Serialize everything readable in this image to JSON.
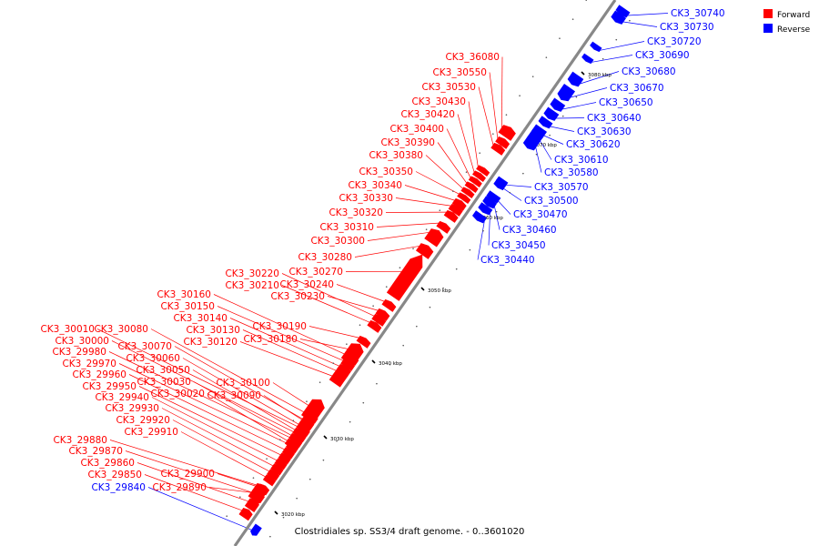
{
  "title": "Clostridiales sp. SS3/4 draft genome. - 0..3601020",
  "legend": [
    {
      "label": "Forward",
      "color": "#ff0000"
    },
    {
      "label": "Reverse",
      "color": "#0000ff"
    }
  ],
  "colors": {
    "forward": "#ff0000",
    "reverse": "#0000ff",
    "backbone": "#888888"
  },
  "ticks": [
    "3020 kbp",
    "3030 kbp",
    "3040 kbp",
    "3050 kbp",
    "3060 kbp",
    "3070 kbp",
    "3080 kbp"
  ],
  "genes": [
    {
      "name": "CK3_29840",
      "strand": "reverse"
    },
    {
      "name": "CK3_29850",
      "strand": "forward"
    },
    {
      "name": "CK3_29860",
      "strand": "forward"
    },
    {
      "name": "CK3_29870",
      "strand": "forward"
    },
    {
      "name": "CK3_29880",
      "strand": "forward"
    },
    {
      "name": "CK3_29890",
      "strand": "forward"
    },
    {
      "name": "CK3_29900",
      "strand": "forward"
    },
    {
      "name": "CK3_29910",
      "strand": "forward"
    },
    {
      "name": "CK3_29920",
      "strand": "forward"
    },
    {
      "name": "CK3_29930",
      "strand": "forward"
    },
    {
      "name": "CK3_29940",
      "strand": "forward"
    },
    {
      "name": "CK3_29950",
      "strand": "forward"
    },
    {
      "name": "CK3_29960",
      "strand": "forward"
    },
    {
      "name": "CK3_29970",
      "strand": "forward"
    },
    {
      "name": "CK3_29980",
      "strand": "forward"
    },
    {
      "name": "CK3_30000",
      "strand": "forward"
    },
    {
      "name": "CK3_30010",
      "strand": "forward"
    },
    {
      "name": "CK3_30020",
      "strand": "forward"
    },
    {
      "name": "CK3_30030",
      "strand": "forward"
    },
    {
      "name": "CK3_30050",
      "strand": "forward"
    },
    {
      "name": "CK3_30060",
      "strand": "forward"
    },
    {
      "name": "CK3_30070",
      "strand": "forward"
    },
    {
      "name": "CK3_30080",
      "strand": "forward"
    },
    {
      "name": "CK3_30090",
      "strand": "forward"
    },
    {
      "name": "CK3_30100",
      "strand": "forward"
    },
    {
      "name": "CK3_30120",
      "strand": "forward"
    },
    {
      "name": "CK3_30130",
      "strand": "forward"
    },
    {
      "name": "CK3_30140",
      "strand": "forward"
    },
    {
      "name": "CK3_30150",
      "strand": "forward"
    },
    {
      "name": "CK3_30160",
      "strand": "forward"
    },
    {
      "name": "CK3_30180",
      "strand": "forward"
    },
    {
      "name": "CK3_30190",
      "strand": "forward"
    },
    {
      "name": "CK3_30210",
      "strand": "forward"
    },
    {
      "name": "CK3_30220",
      "strand": "forward"
    },
    {
      "name": "CK3_30230",
      "strand": "forward"
    },
    {
      "name": "CK3_30240",
      "strand": "forward"
    },
    {
      "name": "CK3_30270",
      "strand": "forward"
    },
    {
      "name": "CK3_30280",
      "strand": "forward"
    },
    {
      "name": "CK3_30300",
      "strand": "forward"
    },
    {
      "name": "CK3_30310",
      "strand": "forward"
    },
    {
      "name": "CK3_30320",
      "strand": "forward"
    },
    {
      "name": "CK3_30330",
      "strand": "forward"
    },
    {
      "name": "CK3_30340",
      "strand": "forward"
    },
    {
      "name": "CK3_30350",
      "strand": "forward"
    },
    {
      "name": "CK3_30380",
      "strand": "forward"
    },
    {
      "name": "CK3_30390",
      "strand": "forward"
    },
    {
      "name": "CK3_30400",
      "strand": "forward"
    },
    {
      "name": "CK3_30420",
      "strand": "forward"
    },
    {
      "name": "CK3_30430",
      "strand": "forward"
    },
    {
      "name": "CK3_30530",
      "strand": "forward"
    },
    {
      "name": "CK3_30550",
      "strand": "forward"
    },
    {
      "name": "CK3_36080",
      "strand": "forward"
    },
    {
      "name": "CK3_30440",
      "strand": "reverse"
    },
    {
      "name": "CK3_30450",
      "strand": "reverse"
    },
    {
      "name": "CK3_30460",
      "strand": "reverse"
    },
    {
      "name": "CK3_30470",
      "strand": "reverse"
    },
    {
      "name": "CK3_30500",
      "strand": "reverse"
    },
    {
      "name": "CK3_30570",
      "strand": "reverse"
    },
    {
      "name": "CK3_30580",
      "strand": "reverse"
    },
    {
      "name": "CK3_30610",
      "strand": "reverse"
    },
    {
      "name": "CK3_30620",
      "strand": "reverse"
    },
    {
      "name": "CK3_30630",
      "strand": "reverse"
    },
    {
      "name": "CK3_30640",
      "strand": "reverse"
    },
    {
      "name": "CK3_30650",
      "strand": "reverse"
    },
    {
      "name": "CK3_30670",
      "strand": "reverse"
    },
    {
      "name": "CK3_30680",
      "strand": "reverse"
    },
    {
      "name": "CK3_30690",
      "strand": "reverse"
    },
    {
      "name": "CK3_30720",
      "strand": "reverse"
    },
    {
      "name": "CK3_30730",
      "strand": "reverse"
    },
    {
      "name": "CK3_30740",
      "strand": "reverse"
    }
  ]
}
